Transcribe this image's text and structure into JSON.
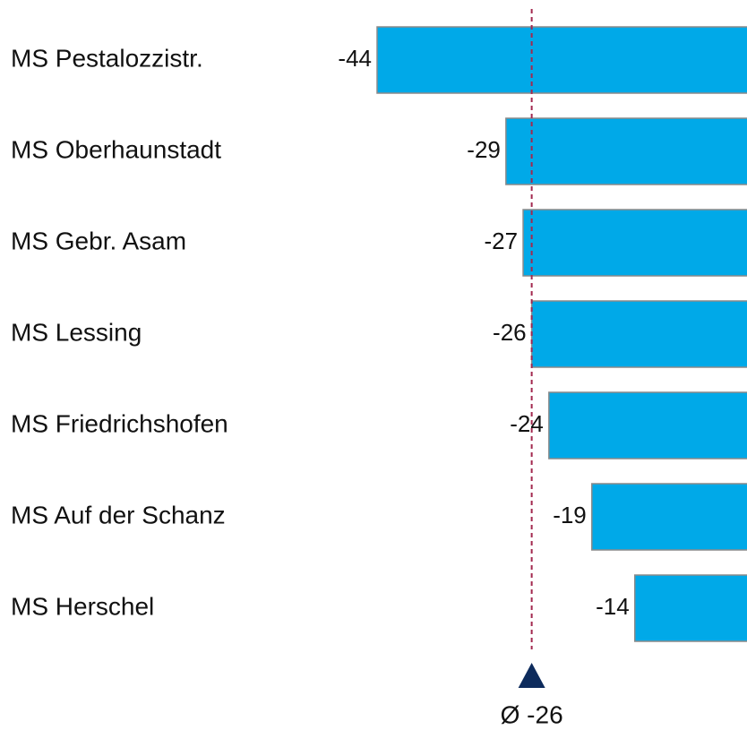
{
  "chart_data": {
    "type": "bar",
    "orientation": "horizontal",
    "categories": [
      "MS Pestalozzistr.",
      "MS Oberhaunstadt",
      "MS Gebr. Asam",
      "MS Lessing",
      "MS Friedrichshofen",
      "MS Auf der Schanz",
      "MS Herschel"
    ],
    "values": [
      -44,
      -29,
      -27,
      -26,
      -24,
      -19,
      -14
    ],
    "color": "#00a9e8",
    "xlim": [
      -44,
      0
    ],
    "reference_line": {
      "value": -26,
      "label": "Ø -26",
      "color": "#a3294f"
    }
  }
}
